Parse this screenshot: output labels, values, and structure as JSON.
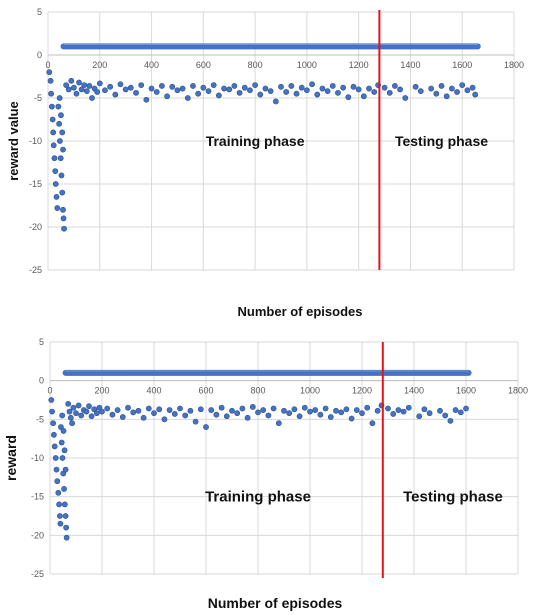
{
  "chart_data": [
    {
      "type": "scatter",
      "title": "",
      "xlabel": "Number of episodes",
      "ylabel": "reward value",
      "xlim": [
        0,
        1800
      ],
      "ylim": [
        -25,
        5
      ],
      "x_ticks": [
        0,
        200,
        400,
        600,
        800,
        1000,
        1200,
        1400,
        1600,
        1800
      ],
      "y_ticks": [
        5,
        0,
        -5,
        -10,
        -15,
        -20,
        -25
      ],
      "grid": true,
      "annotations": [
        {
          "text": "Training phase",
          "x": 800,
          "y": -10
        },
        {
          "text": "Testing phase",
          "x": 1520,
          "y": -10
        }
      ],
      "divider_x": 1280,
      "divider_color": "#e8131a",
      "marker_color": "#4472c4",
      "series": [
        {
          "points": [
            [
              5,
              -2.0
            ],
            [
              10,
              -3.0
            ],
            [
              12,
              -4.5
            ],
            [
              15,
              -6.0
            ],
            [
              18,
              -7.5
            ],
            [
              20,
              -9.0
            ],
            [
              22,
              -10.5
            ],
            [
              25,
              -12.0
            ],
            [
              28,
              -13.5
            ],
            [
              30,
              -15.0
            ],
            [
              33,
              -16.5
            ],
            [
              36,
              -17.8
            ],
            [
              40,
              -6.0
            ],
            [
              43,
              -8.0
            ],
            [
              46,
              -10.0
            ],
            [
              49,
              -12.0
            ],
            [
              52,
              -14.0
            ],
            [
              55,
              -16.0
            ],
            [
              58,
              -18.0
            ],
            [
              60,
              -19.0
            ],
            [
              62,
              -20.2
            ],
            [
              45,
              -5.0
            ],
            [
              50,
              -7.0
            ],
            [
              55,
              -9.0
            ],
            [
              58,
              -11.0
            ],
            [
              70,
              -3.5
            ],
            [
              80,
              -4.0
            ],
            [
              90,
              -3.0
            ],
            [
              100,
              -3.8
            ],
            [
              110,
              -4.5
            ],
            [
              120,
              -3.2
            ],
            [
              130,
              -4.0
            ],
            [
              140,
              -3.5
            ],
            [
              150,
              -4.2
            ],
            [
              160,
              -3.6
            ],
            [
              170,
              -5.0
            ],
            [
              180,
              -3.9
            ],
            [
              190,
              -4.3
            ],
            [
              200,
              -3.3
            ],
            [
              220,
              -4.1
            ],
            [
              240,
              -3.7
            ],
            [
              260,
              -4.6
            ],
            [
              280,
              -3.4
            ],
            [
              300,
              -4.0
            ],
            [
              320,
              -3.8
            ],
            [
              340,
              -4.4
            ],
            [
              360,
              -3.5
            ],
            [
              380,
              -5.2
            ],
            [
              400,
              -3.9
            ],
            [
              420,
              -4.3
            ],
            [
              440,
              -3.6
            ],
            [
              460,
              -4.8
            ],
            [
              480,
              -3.7
            ],
            [
              500,
              -4.1
            ],
            [
              520,
              -3.9
            ],
            [
              540,
              -5.0
            ],
            [
              560,
              -3.6
            ],
            [
              580,
              -4.5
            ],
            [
              600,
              -3.8
            ],
            [
              620,
              -4.2
            ],
            [
              640,
              -3.5
            ],
            [
              660,
              -4.7
            ],
            [
              680,
              -3.9
            ],
            [
              700,
              -4.0
            ],
            [
              720,
              -3.6
            ],
            [
              740,
              -4.4
            ],
            [
              760,
              -3.8
            ],
            [
              780,
              -4.1
            ],
            [
              800,
              -3.5
            ],
            [
              820,
              -4.6
            ],
            [
              840,
              -3.9
            ],
            [
              860,
              -4.2
            ],
            [
              880,
              -5.4
            ],
            [
              900,
              -3.7
            ],
            [
              920,
              -4.3
            ],
            [
              940,
              -3.6
            ],
            [
              960,
              -4.5
            ],
            [
              980,
              -3.8
            ],
            [
              1000,
              -4.1
            ],
            [
              1020,
              -3.4
            ],
            [
              1040,
              -4.6
            ],
            [
              1060,
              -3.9
            ],
            [
              1080,
              -4.2
            ],
            [
              1100,
              -3.6
            ],
            [
              1120,
              -4.4
            ],
            [
              1140,
              -3.8
            ],
            [
              1160,
              -4.9
            ],
            [
              1180,
              -3.7
            ],
            [
              1200,
              -4.0
            ],
            [
              1220,
              -4.8
            ],
            [
              1240,
              -3.9
            ],
            [
              1260,
              -4.3
            ],
            [
              1275,
              -3.5
            ],
            [
              1300,
              -3.8
            ],
            [
              1320,
              -4.4
            ],
            [
              1340,
              -3.6
            ],
            [
              1360,
              -4.0
            ],
            [
              1380,
              -5.0
            ],
            [
              1420,
              -3.7
            ],
            [
              1440,
              -4.2
            ],
            [
              1480,
              -3.9
            ],
            [
              1500,
              -4.5
            ],
            [
              1520,
              -3.6
            ],
            [
              1540,
              -4.8
            ],
            [
              1560,
              -3.9
            ],
            [
              1580,
              -4.3
            ],
            [
              1600,
              -3.5
            ],
            [
              1620,
              -4.1
            ],
            [
              1640,
              -3.8
            ],
            [
              1650,
              -4.6
            ]
          ]
        }
      ],
      "band": {
        "x_start": 60,
        "x_end": 1660,
        "y": 1
      }
    },
    {
      "type": "scatter",
      "title": "",
      "xlabel": "Number of episodes",
      "ylabel": "reward",
      "xlim": [
        0,
        1800
      ],
      "ylim": [
        -25,
        5
      ],
      "x_ticks": [
        0,
        200,
        400,
        600,
        800,
        1000,
        1200,
        1400,
        1600,
        1800
      ],
      "y_ticks": [
        5,
        0,
        -5,
        -10,
        -15,
        -20,
        -25
      ],
      "grid": true,
      "annotations": [
        {
          "text": "Training phase",
          "x": 800,
          "y": -15
        },
        {
          "text": "Testing phase",
          "x": 1550,
          "y": -15
        }
      ],
      "divider_x": 1280,
      "divider_color": "#e8131a",
      "marker_color": "#4472c4",
      "series": [
        {
          "points": [
            [
              5,
              -2.5
            ],
            [
              8,
              -4.0
            ],
            [
              12,
              -5.5
            ],
            [
              15,
              -7.0
            ],
            [
              18,
              -8.5
            ],
            [
              22,
              -10.0
            ],
            [
              25,
              -11.5
            ],
            [
              28,
              -13.0
            ],
            [
              32,
              -14.5
            ],
            [
              35,
              -16.0
            ],
            [
              38,
              -17.5
            ],
            [
              40,
              -18.5
            ],
            [
              42,
              -6.0
            ],
            [
              45,
              -8.0
            ],
            [
              48,
              -10.0
            ],
            [
              51,
              -12.0
            ],
            [
              54,
              -14.0
            ],
            [
              57,
              -16.0
            ],
            [
              60,
              -17.5
            ],
            [
              62,
              -19.0
            ],
            [
              64,
              -20.3
            ],
            [
              47,
              -4.5
            ],
            [
              52,
              -6.5
            ],
            [
              56,
              -9.0
            ],
            [
              60,
              -11.5
            ],
            [
              70,
              -3.0
            ],
            [
              75,
              -4.0
            ],
            [
              80,
              -4.8
            ],
            [
              85,
              -5.5
            ],
            [
              90,
              -3.5
            ],
            [
              100,
              -4.2
            ],
            [
              110,
              -3.2
            ],
            [
              120,
              -4.5
            ],
            [
              130,
              -3.8
            ],
            [
              140,
              -4.0
            ],
            [
              150,
              -3.3
            ],
            [
              160,
              -4.6
            ],
            [
              170,
              -3.7
            ],
            [
              180,
              -4.2
            ],
            [
              190,
              -3.5
            ],
            [
              200,
              -4.0
            ],
            [
              220,
              -3.6
            ],
            [
              240,
              -4.4
            ],
            [
              260,
              -3.8
            ],
            [
              280,
              -4.7
            ],
            [
              300,
              -3.5
            ],
            [
              320,
              -4.1
            ],
            [
              340,
              -3.9
            ],
            [
              360,
              -4.8
            ],
            [
              380,
              -3.6
            ],
            [
              400,
              -4.2
            ],
            [
              420,
              -3.7
            ],
            [
              440,
              -5.0
            ],
            [
              460,
              -3.8
            ],
            [
              480,
              -4.3
            ],
            [
              500,
              -3.6
            ],
            [
              520,
              -4.5
            ],
            [
              540,
              -3.9
            ],
            [
              560,
              -5.3
            ],
            [
              580,
              -3.7
            ],
            [
              600,
              -6.0
            ],
            [
              620,
              -3.8
            ],
            [
              640,
              -4.4
            ],
            [
              660,
              -3.5
            ],
            [
              680,
              -4.6
            ],
            [
              700,
              -3.9
            ],
            [
              720,
              -4.2
            ],
            [
              740,
              -3.6
            ],
            [
              760,
              -4.8
            ],
            [
              780,
              -3.4
            ],
            [
              800,
              -4.1
            ],
            [
              820,
              -3.8
            ],
            [
              840,
              -4.5
            ],
            [
              860,
              -3.6
            ],
            [
              880,
              -5.5
            ],
            [
              900,
              -3.9
            ],
            [
              920,
              -4.2
            ],
            [
              940,
              -3.7
            ],
            [
              960,
              -4.6
            ],
            [
              980,
              -3.5
            ],
            [
              1000,
              -4.0
            ],
            [
              1020,
              -3.8
            ],
            [
              1040,
              -4.4
            ],
            [
              1060,
              -3.6
            ],
            [
              1080,
              -4.7
            ],
            [
              1100,
              -3.9
            ],
            [
              1120,
              -4.1
            ],
            [
              1140,
              -3.7
            ],
            [
              1160,
              -4.9
            ],
            [
              1180,
              -3.8
            ],
            [
              1200,
              -4.2
            ],
            [
              1220,
              -3.5
            ],
            [
              1240,
              -5.5
            ],
            [
              1260,
              -3.9
            ],
            [
              1275,
              -3.2
            ],
            [
              1300,
              -3.6
            ],
            [
              1320,
              -4.3
            ],
            [
              1340,
              -3.8
            ],
            [
              1360,
              -4.0
            ],
            [
              1380,
              -3.5
            ],
            [
              1420,
              -4.6
            ],
            [
              1440,
              -3.7
            ],
            [
              1460,
              -4.2
            ],
            [
              1500,
              -3.9
            ],
            [
              1520,
              -4.5
            ],
            [
              1540,
              -5.2
            ],
            [
              1560,
              -3.8
            ],
            [
              1580,
              -4.1
            ],
            [
              1600,
              -3.6
            ]
          ]
        }
      ],
      "band": {
        "x_start": 60,
        "x_end": 1610,
        "y": 1
      }
    }
  ]
}
